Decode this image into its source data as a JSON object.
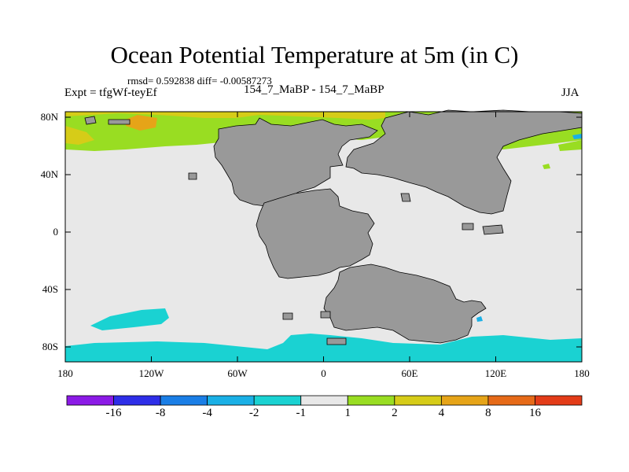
{
  "title": "Ocean Potential Temperature at 5m (in C)",
  "stats": "rmsd= 0.592838 diff= -0.00587273",
  "experiment": "Expt = tfgWf-teyEf",
  "case_pair": "154_7_MaBP - 154_7_MaBP",
  "season": "JJA",
  "lat_labels": [
    "80N",
    "40N",
    "0",
    "40S",
    "80S"
  ],
  "lon_labels": [
    "180",
    "120W",
    "60W",
    "0",
    "60E",
    "120E",
    "180"
  ],
  "colorbar": {
    "colors": [
      "#8b1ae6",
      "#2e2ee8",
      "#1a7ee6",
      "#1ab0e6",
      "#1ad2d2",
      "#e8e8e8",
      "#99dd22",
      "#d6cc18",
      "#e6a418",
      "#e66a18",
      "#e33c18"
    ],
    "labels": [
      "-16",
      "-8",
      "-4",
      "-2",
      "-1",
      "1",
      "2",
      "4",
      "8",
      "16"
    ]
  },
  "map_colors": {
    "ocean_background": "#e8e8e8",
    "land": "#999999",
    "warm_light": "#99dd22",
    "warm_mid": "#d6cc18",
    "warm_strong": "#e6a418",
    "cool": "#1ad2d2",
    "cool_strong": "#1ab0e6"
  }
}
